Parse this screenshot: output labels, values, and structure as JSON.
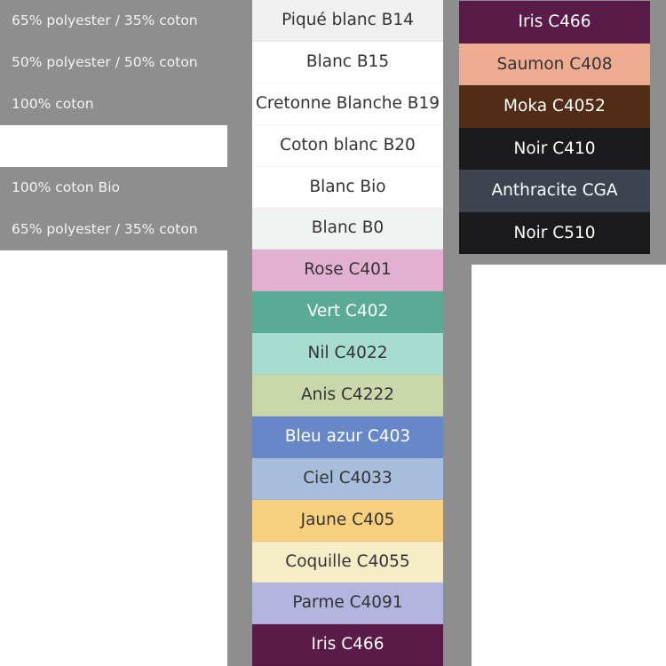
{
  "fabrics": [
    {
      "label": "65% polyester / 35% coton"
    },
    {
      "label": "50% polyester / 50% coton"
    },
    {
      "label": "100% coton"
    },
    {
      "label": ""
    },
    {
      "label": "100% coton Bio"
    },
    {
      "label": "65% polyester / 35% coton"
    }
  ],
  "swatches_main": [
    {
      "label": "Piqué blanc B14",
      "color": "#f0f0f0",
      "text": "#333333"
    },
    {
      "label": "Blanc B15",
      "color": "#ffffff",
      "text": "#333333"
    },
    {
      "label": "Cretonne Blanche B19",
      "color": "#ffffff",
      "text": "#333333"
    },
    {
      "label": "Coton blanc B20",
      "color": "#ffffff",
      "text": "#333333"
    },
    {
      "label": "Blanc Bio",
      "color": "#ffffff",
      "text": "#333333"
    },
    {
      "label": "Blanc B0",
      "color": "#f1f3f2",
      "text": "#333333"
    },
    {
      "label": "Rose C401",
      "color": "#e2b1d1",
      "text": "#333333"
    },
    {
      "label": "Vert C402",
      "color": "#5aab95",
      "text": "#ffffff"
    },
    {
      "label": "Nil C4022",
      "color": "#a7ddd0",
      "text": "#333333"
    },
    {
      "label": "Anis C4222",
      "color": "#c9d7ab",
      "text": "#333333"
    },
    {
      "label": "Bleu azur C403",
      "color": "#6787c7",
      "text": "#ffffff"
    },
    {
      "label": "Ciel C4033",
      "color": "#a6bedb",
      "text": "#333333"
    },
    {
      "label": "Jaune C405",
      "color": "#f8d07f",
      "text": "#333333"
    },
    {
      "label": "Coquille C4055",
      "color": "#f7ecc8",
      "text": "#333333"
    },
    {
      "label": "Parme C4091",
      "color": "#b4b5df",
      "text": "#333333"
    },
    {
      "label": "Iris C466",
      "color": "#5a1b48",
      "text": "#ffffff"
    }
  ],
  "swatches_dark": [
    {
      "label": "Iris C466",
      "color": "#5a1b48",
      "text": "#ffffff"
    },
    {
      "label": "Saumon C408",
      "color": "#eeac92",
      "text": "#333333"
    },
    {
      "label": "Moka C4052",
      "color": "#522c16",
      "text": "#ffffff"
    },
    {
      "label": "Noir C410",
      "color": "#1b1b1d",
      "text": "#ffffff"
    },
    {
      "label": "Anthracite CGA",
      "color": "#3d4450",
      "text": "#ffffff"
    },
    {
      "label": "Noir C510",
      "color": "#1a1a1c",
      "text": "#ffffff"
    }
  ]
}
